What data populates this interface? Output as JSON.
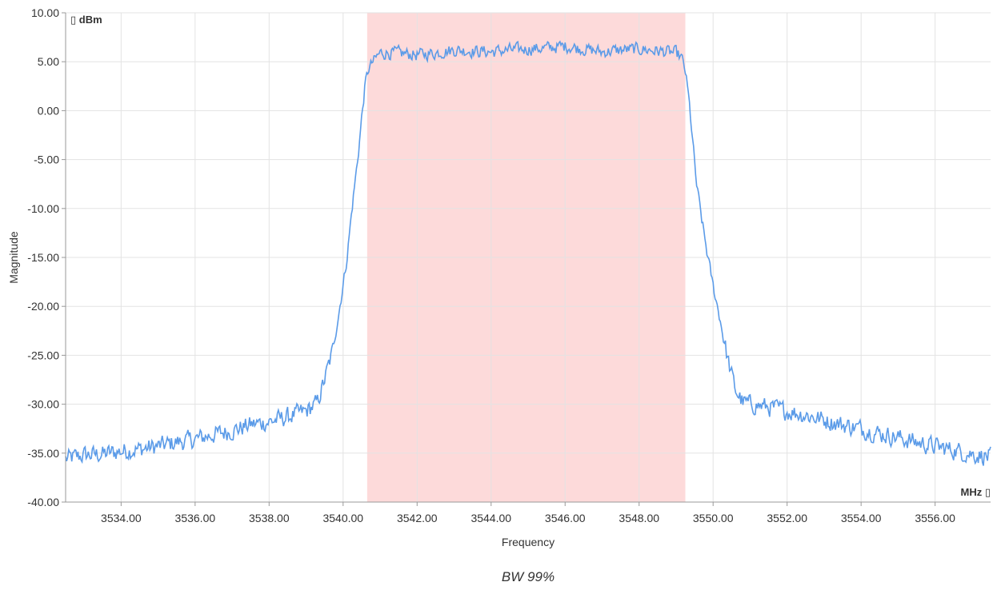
{
  "chart_data": {
    "type": "line",
    "caption": "BW 99%",
    "xlabel": "Frequency",
    "ylabel": "Magnitude",
    "x_unit": "MHz ▯",
    "y_unit": "▯ dBm",
    "xlim": [
      3532.5,
      3557.5
    ],
    "ylim": [
      -40,
      10
    ],
    "x_ticks": [
      3534,
      3536,
      3538,
      3540,
      3542,
      3544,
      3546,
      3548,
      3550,
      3552,
      3554,
      3556
    ],
    "x_tick_labels": [
      "3534.00",
      "3536.00",
      "3538.00",
      "3540.00",
      "3542.00",
      "3544.00",
      "3546.00",
      "3548.00",
      "3550.00",
      "3552.00",
      "3554.00",
      "3556.00"
    ],
    "y_ticks": [
      10,
      5,
      0,
      -5,
      -10,
      -15,
      -20,
      -25,
      -30,
      -35,
      -40
    ],
    "y_tick_labels": [
      "10.00",
      "5.00",
      "0.00",
      "-5.00",
      "-10.00",
      "-15.00",
      "-20.00",
      "-25.00",
      "-30.00",
      "-35.00",
      "-40.00"
    ],
    "grid": true,
    "band": {
      "x_start": 3540.65,
      "x_end": 3549.25,
      "color": "#fddada"
    },
    "series": [
      {
        "color": "#5b9be8",
        "points": [
          [
            3532.5,
            -35.6
          ],
          [
            3533.0,
            -35.2
          ],
          [
            3533.5,
            -35.1
          ],
          [
            3534.0,
            -34.8
          ],
          [
            3534.5,
            -34.6
          ],
          [
            3535.0,
            -34.3
          ],
          [
            3535.5,
            -33.9
          ],
          [
            3536.0,
            -33.6
          ],
          [
            3536.5,
            -33.1
          ],
          [
            3537.0,
            -32.7
          ],
          [
            3537.5,
            -32.1
          ],
          [
            3538.0,
            -31.8
          ],
          [
            3538.5,
            -31.3
          ],
          [
            3539.0,
            -30.7
          ],
          [
            3539.3,
            -29.9
          ],
          [
            3539.5,
            -27.5
          ],
          [
            3539.7,
            -24.8
          ],
          [
            3539.8,
            -22.6
          ],
          [
            3539.9,
            -20.3
          ],
          [
            3540.0,
            -17.8
          ],
          [
            3540.1,
            -15.2
          ],
          [
            3540.2,
            -11.5
          ],
          [
            3540.3,
            -8.0
          ],
          [
            3540.4,
            -4.8
          ],
          [
            3540.5,
            -0.8
          ],
          [
            3540.6,
            2.8
          ],
          [
            3540.7,
            4.4
          ],
          [
            3540.85,
            5.2
          ],
          [
            3541.0,
            5.9
          ],
          [
            3541.5,
            5.9
          ],
          [
            3542.0,
            5.7
          ],
          [
            3542.5,
            5.9
          ],
          [
            3543.0,
            6.2
          ],
          [
            3543.5,
            6.1
          ],
          [
            3544.0,
            6.0
          ],
          [
            3544.5,
            6.2
          ],
          [
            3545.0,
            6.3
          ],
          [
            3545.5,
            6.4
          ],
          [
            3546.0,
            6.6
          ],
          [
            3546.5,
            6.3
          ],
          [
            3547.0,
            6.0
          ],
          [
            3547.5,
            6.2
          ],
          [
            3548.0,
            6.3
          ],
          [
            3548.5,
            6.1
          ],
          [
            3549.0,
            5.9
          ],
          [
            3549.15,
            5.4
          ],
          [
            3549.25,
            4.0
          ],
          [
            3549.35,
            1.0
          ],
          [
            3549.45,
            -3.2
          ],
          [
            3549.55,
            -7.5
          ],
          [
            3549.7,
            -11.3
          ],
          [
            3549.85,
            -14.8
          ],
          [
            3550.0,
            -17.9
          ],
          [
            3550.2,
            -21.5
          ],
          [
            3550.4,
            -25.5
          ],
          [
            3550.6,
            -28.5
          ],
          [
            3550.8,
            -29.8
          ],
          [
            3551.0,
            -30.0
          ],
          [
            3551.5,
            -30.3
          ],
          [
            3552.0,
            -30.7
          ],
          [
            3552.5,
            -31.1
          ],
          [
            3553.0,
            -31.6
          ],
          [
            3553.5,
            -32.1
          ],
          [
            3554.0,
            -32.5
          ],
          [
            3554.5,
            -33.0
          ],
          [
            3555.0,
            -33.4
          ],
          [
            3555.5,
            -33.9
          ],
          [
            3556.0,
            -34.3
          ],
          [
            3556.5,
            -34.7
          ],
          [
            3557.0,
            -35.1
          ],
          [
            3557.5,
            -35.4
          ]
        ]
      }
    ]
  }
}
